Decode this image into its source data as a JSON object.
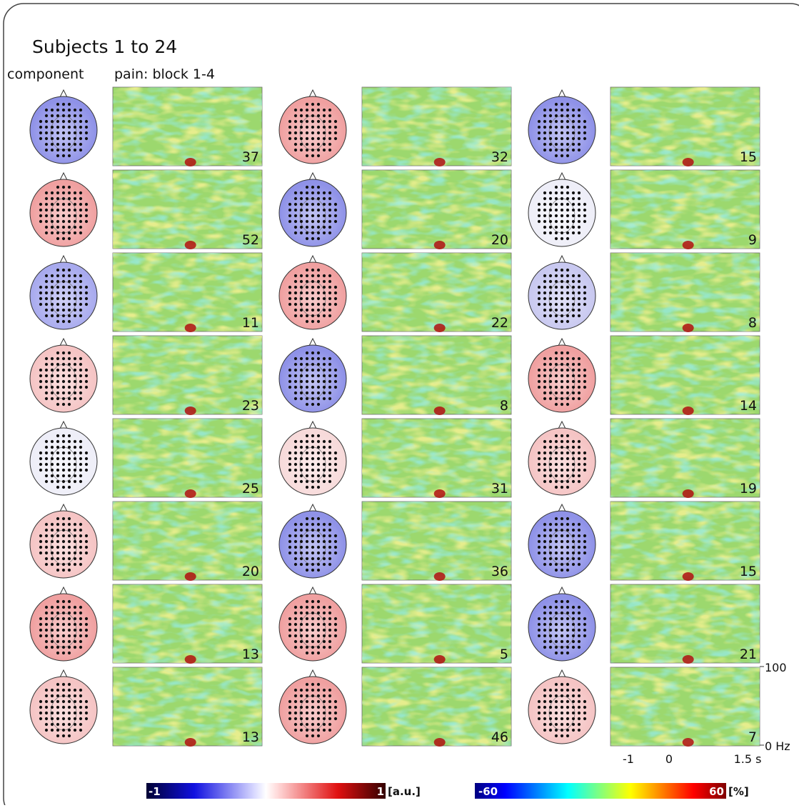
{
  "header": {
    "title": "Subjects 1 to 24",
    "component_label": "component",
    "condition_label": "pain: block 1-4"
  },
  "panels": [
    {
      "value": 37,
      "topo_color": "#8f92e8"
    },
    {
      "value": 32,
      "topo_color": "#f0a0a0"
    },
    {
      "value": 15,
      "topo_color": "#8f92e8"
    },
    {
      "value": 52,
      "topo_color": "#f0a0a0"
    },
    {
      "value": 20,
      "topo_color": "#8f92e8"
    },
    {
      "value": 9,
      "topo_color": "#eeeef8"
    },
    {
      "value": 11,
      "topo_color": "#a8aaee"
    },
    {
      "value": 22,
      "topo_color": "#f0a0a0"
    },
    {
      "value": 8,
      "topo_color": "#c8c8f0"
    },
    {
      "value": 23,
      "topo_color": "#f5c4c4"
    },
    {
      "value": 8,
      "topo_color": "#8f92e8"
    },
    {
      "value": 14,
      "topo_color": "#f0a0a0"
    },
    {
      "value": 25,
      "topo_color": "#eeeef8"
    },
    {
      "value": 31,
      "topo_color": "#f7dada"
    },
    {
      "value": 19,
      "topo_color": "#f5c4c4"
    },
    {
      "value": 20,
      "topo_color": "#f5c4c4"
    },
    {
      "value": 36,
      "topo_color": "#8f92e8"
    },
    {
      "value": 15,
      "topo_color": "#8f92e8"
    },
    {
      "value": 13,
      "topo_color": "#f0a0a0"
    },
    {
      "value": 5,
      "topo_color": "#f0a0a0"
    },
    {
      "value": 21,
      "topo_color": "#8f92e8"
    },
    {
      "value": 13,
      "topo_color": "#f5c4c4"
    },
    {
      "value": 46,
      "topo_color": "#f0a0a0"
    },
    {
      "value": 7,
      "topo_color": "#f5c4c4"
    }
  ],
  "axis": {
    "y_top": "100",
    "y_bottom": "0 Hz",
    "x_ticks": [
      "-1",
      "0",
      "1.5 s"
    ]
  },
  "colorbars": [
    {
      "min": "-1",
      "max": "1",
      "unit": "[a.u.]"
    },
    {
      "min": "-60",
      "max": "60",
      "unit": "[%]"
    }
  ]
}
